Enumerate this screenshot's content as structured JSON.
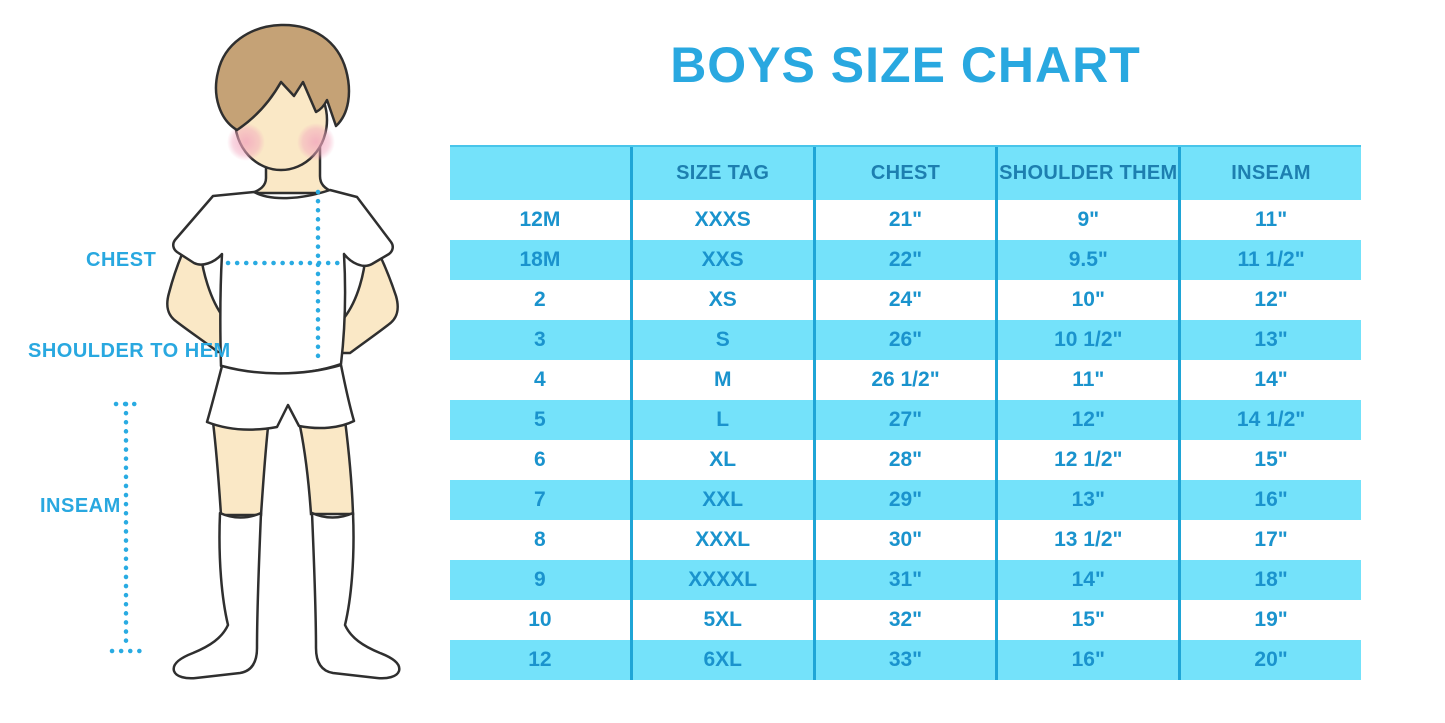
{
  "title": "BOYS SIZE CHART",
  "colors": {
    "title": "#29a8e0",
    "label": "#29a8e0",
    "row_blue": "#74e2fa",
    "divider": "#1fa5d6",
    "header_text": "#1d7fb0",
    "cell_text": "#1a93cd",
    "measure_line": "#29abe2",
    "skin": "#fae8c6",
    "hair": "#c5a276",
    "outline": "#2f2f2f"
  },
  "figure": {
    "labels": {
      "chest": "CHEST",
      "shoulder_to_hem": "SHOULDER TO HEM",
      "inseam": "INSEAM"
    }
  },
  "chart_data": {
    "type": "table",
    "title": "BOYS SIZE CHART",
    "columns": [
      "",
      "SIZE TAG",
      "CHEST",
      "SHOULDER THEM",
      "INSEAM"
    ],
    "rows": [
      [
        "12M",
        "XXXS",
        "21\"",
        "9\"",
        "11\""
      ],
      [
        "18M",
        "XXS",
        "22\"",
        "9.5\"",
        "11 1/2\""
      ],
      [
        "2",
        "XS",
        "24\"",
        "10\"",
        "12\""
      ],
      [
        "3",
        "S",
        "26\"",
        "10 1/2\"",
        "13\""
      ],
      [
        "4",
        "M",
        "26 1/2\"",
        "11\"",
        "14\""
      ],
      [
        "5",
        "L",
        "27\"",
        "12\"",
        "14 1/2\""
      ],
      [
        "6",
        "XL",
        "28\"",
        "12 1/2\"",
        "15\""
      ],
      [
        "7",
        "XXL",
        "29\"",
        "13\"",
        "16\""
      ],
      [
        "8",
        "XXXL",
        "30\"",
        "13 1/2\"",
        "17\""
      ],
      [
        "9",
        "XXXXL",
        "31\"",
        "14\"",
        "18\""
      ],
      [
        "10",
        "5XL",
        "32\"",
        "15\"",
        "19\""
      ],
      [
        "12",
        "6XL",
        "33\"",
        "16\"",
        "20\""
      ]
    ],
    "striping": "alternating white / light-cyan rows starting white",
    "legend_position": "none",
    "grid": "vertical dividers only"
  }
}
